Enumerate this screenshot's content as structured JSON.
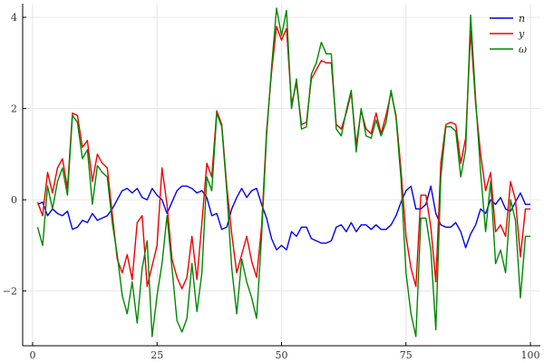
{
  "chart_data": {
    "type": "line",
    "title": "",
    "xlabel": "",
    "ylabel": "",
    "xlim": [
      -2,
      102
    ],
    "ylim": [
      -3.2,
      4.3
    ],
    "x_ticks": [
      0,
      25,
      50,
      75,
      100
    ],
    "x_tick_labels": [
      "0",
      "25",
      "50",
      "75",
      "100"
    ],
    "y_ticks": [
      -2,
      0,
      2,
      4
    ],
    "y_tick_labels": [
      "−2",
      "0",
      "2",
      "4"
    ],
    "grid": true,
    "legend_position": "top-right",
    "x": [
      1,
      2,
      3,
      4,
      5,
      6,
      7,
      8,
      9,
      10,
      11,
      12,
      13,
      14,
      15,
      16,
      17,
      18,
      19,
      20,
      21,
      22,
      23,
      24,
      25,
      26,
      27,
      28,
      29,
      30,
      31,
      32,
      33,
      34,
      35,
      36,
      37,
      38,
      39,
      40,
      41,
      42,
      43,
      44,
      45,
      46,
      47,
      48,
      49,
      50,
      51,
      52,
      53,
      54,
      55,
      56,
      57,
      58,
      59,
      60,
      61,
      62,
      63,
      64,
      65,
      66,
      67,
      68,
      69,
      70,
      71,
      72,
      73,
      74,
      75,
      76,
      77,
      78,
      79,
      80,
      81,
      82,
      83,
      84,
      85,
      86,
      87,
      88,
      89,
      90,
      91,
      92,
      93,
      94,
      95,
      96,
      97,
      98,
      99,
      100
    ],
    "series": [
      {
        "name": "n",
        "color": "#0000ee",
        "values": [
          -0.1,
          -0.05,
          -0.35,
          -0.2,
          -0.3,
          -0.35,
          -0.25,
          -0.65,
          -0.6,
          -0.45,
          -0.5,
          -0.3,
          -0.45,
          -0.4,
          -0.35,
          -0.2,
          0.0,
          0.2,
          0.25,
          0.15,
          0.25,
          0.05,
          0.0,
          0.25,
          0.1,
          0.0,
          -0.3,
          -0.05,
          0.2,
          0.3,
          0.3,
          0.25,
          0.15,
          0.2,
          0.05,
          -0.35,
          -0.3,
          -0.65,
          -0.6,
          -0.2,
          0.05,
          0.25,
          0.05,
          0.2,
          0.25,
          -0.1,
          -0.4,
          -0.85,
          -1.1,
          -1.0,
          -1.1,
          -0.7,
          -0.8,
          -0.6,
          -0.6,
          -0.85,
          -0.9,
          -0.95,
          -0.95,
          -0.9,
          -0.6,
          -0.55,
          -0.7,
          -0.5,
          -0.7,
          -0.55,
          -0.55,
          -0.65,
          -0.55,
          -0.65,
          -0.65,
          -0.55,
          -0.35,
          -0.05,
          0.2,
          0.3,
          -0.2,
          -0.2,
          -0.1,
          0.3,
          -0.3,
          -0.55,
          -0.6,
          -0.6,
          -0.5,
          -0.7,
          -1.05,
          -0.75,
          -0.55,
          -0.2,
          -0.3,
          0.0,
          -0.1,
          0.05,
          -0.2,
          -0.25,
          -0.05,
          0.15,
          -0.1,
          -0.1
        ]
      },
      {
        "name": "y",
        "color": "#ee0000",
        "values": [
          -0.05,
          -0.35,
          0.6,
          0.15,
          0.7,
          0.9,
          0.25,
          1.9,
          1.85,
          1.15,
          1.3,
          0.4,
          1.0,
          0.8,
          0.7,
          -0.3,
          -1.3,
          -1.6,
          -1.2,
          -1.75,
          -0.5,
          -0.35,
          -1.9,
          -1.45,
          -1.0,
          0.7,
          -0.1,
          -1.3,
          -1.7,
          -1.95,
          -1.7,
          -0.8,
          -1.75,
          -0.5,
          0.8,
          0.5,
          1.95,
          1.65,
          0.3,
          -0.75,
          -1.6,
          -1.2,
          -0.8,
          -1.35,
          -1.7,
          -0.6,
          1.5,
          2.8,
          3.8,
          3.5,
          3.75,
          2.1,
          2.55,
          1.65,
          1.7,
          2.65,
          2.85,
          3.05,
          3.0,
          3.0,
          1.65,
          1.55,
          1.9,
          2.35,
          1.2,
          1.95,
          1.55,
          1.45,
          1.9,
          1.45,
          1.85,
          2.35,
          1.85,
          0.65,
          -0.8,
          -1.5,
          -1.9,
          0.1,
          0.1,
          -0.6,
          -1.8,
          0.8,
          1.65,
          1.7,
          1.65,
          0.8,
          1.35,
          3.7,
          2.1,
          1.0,
          0.2,
          0.6,
          -0.7,
          -0.55,
          -0.8,
          0.4,
          0.0,
          -1.25,
          -0.2,
          -0.2
        ]
      },
      {
        "name": "ω",
        "color": "#008800",
        "values": [
          -0.6,
          -1.0,
          0.3,
          -0.2,
          0.4,
          0.7,
          0.1,
          1.85,
          1.7,
          0.9,
          1.1,
          -0.1,
          0.75,
          0.6,
          0.5,
          -0.5,
          -1.2,
          -2.1,
          -2.5,
          -1.8,
          -2.7,
          -1.5,
          -0.9,
          -3.0,
          -2.1,
          -1.4,
          -0.35,
          -1.5,
          -2.65,
          -2.9,
          -2.6,
          -1.4,
          -2.45,
          -1.6,
          0.5,
          0.2,
          1.9,
          1.6,
          0.2,
          -1.5,
          -2.5,
          -1.3,
          -1.8,
          -2.15,
          -2.6,
          -0.8,
          1.4,
          2.9,
          4.2,
          3.6,
          4.15,
          2.0,
          2.65,
          1.55,
          1.6,
          2.75,
          3.0,
          3.45,
          3.2,
          3.2,
          1.55,
          1.4,
          1.95,
          2.4,
          1.05,
          2.0,
          1.4,
          1.35,
          1.75,
          1.4,
          1.7,
          2.4,
          1.8,
          0.45,
          -1.6,
          -2.5,
          -3.0,
          -0.4,
          -0.4,
          -1.1,
          -2.85,
          0.5,
          1.6,
          1.6,
          1.5,
          0.5,
          1.1,
          4.05,
          2.2,
          0.6,
          -0.7,
          0.4,
          -1.4,
          -1.1,
          -1.6,
          0.0,
          -0.45,
          -2.15,
          -0.8,
          -0.8
        ]
      }
    ]
  }
}
